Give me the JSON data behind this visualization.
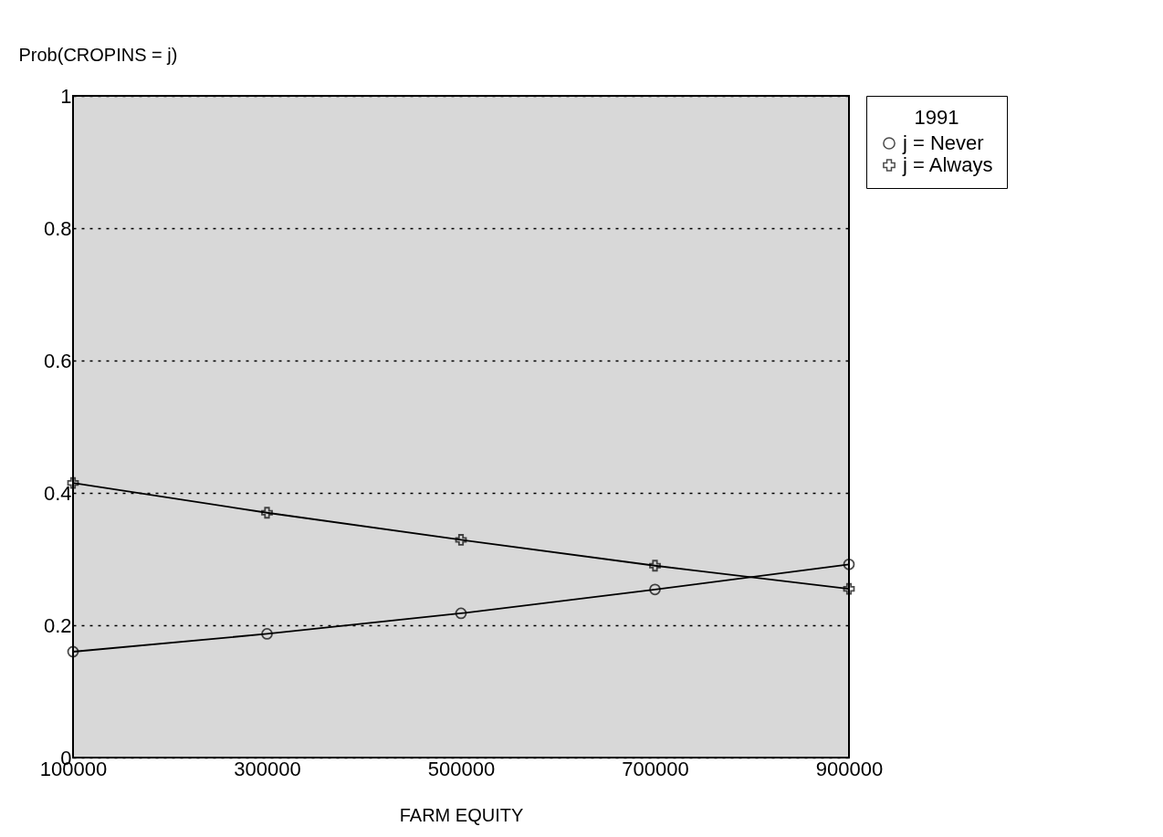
{
  "chart_data": {
    "type": "line",
    "xlabel": "FARM  EQUITY",
    "ylabel": "Prob(CROPINS = j)",
    "legend_title": "1991",
    "x": [
      100000,
      300000,
      500000,
      700000,
      900000
    ],
    "series": [
      {
        "name": "j = Never",
        "color": "#000000",
        "marker": "circle",
        "values": [
          0.16,
          0.187,
          0.218,
          0.254,
          0.292
        ]
      },
      {
        "name": "j = Always",
        "color": "#000000",
        "marker": "cross",
        "values": [
          0.415,
          0.37,
          0.329,
          0.29,
          0.255
        ]
      }
    ],
    "xlim": [
      100000,
      900000
    ],
    "xticks": [
      100000,
      300000,
      500000,
      700000,
      900000
    ],
    "ylim": [
      0,
      1
    ],
    "yticks": [
      0,
      0.2,
      0.4,
      0.6,
      0.8,
      1
    ],
    "grid": "y",
    "legend": "right",
    "line_style": "solid"
  }
}
